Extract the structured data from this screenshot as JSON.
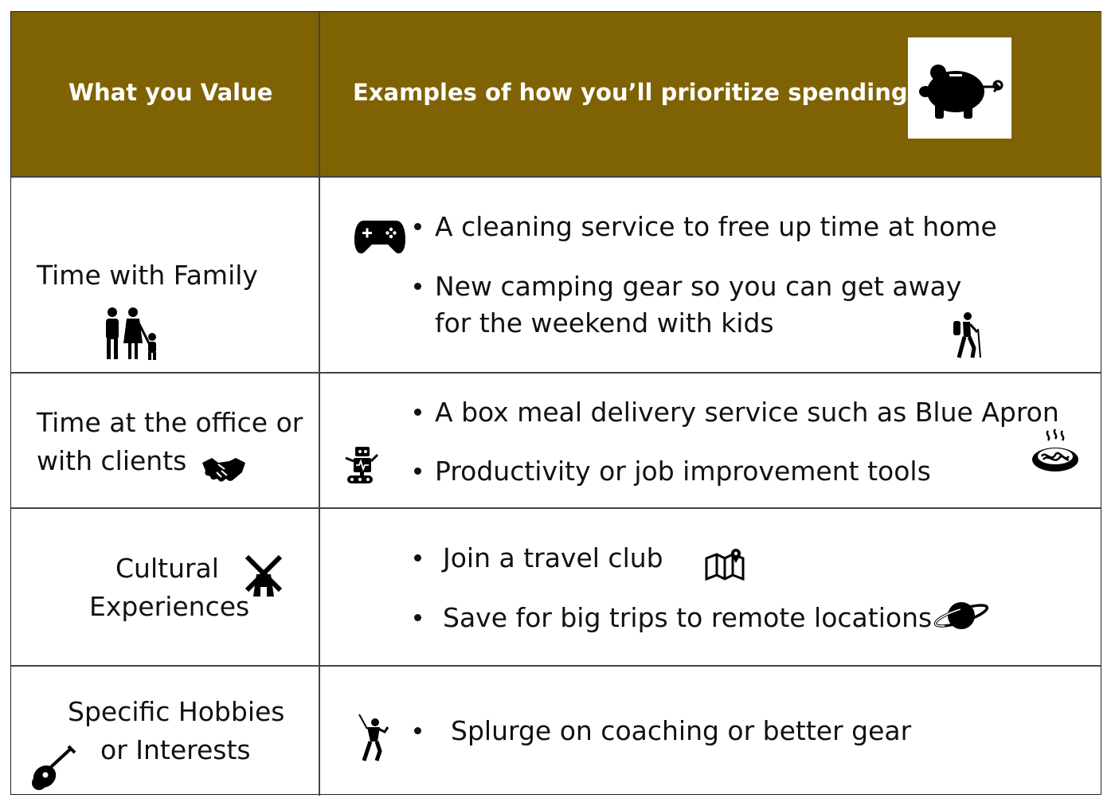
{
  "header": {
    "col1": "What you Value",
    "col2": "Examples of how you’ll prioritize spending",
    "icon": "piggy-bank-icon"
  },
  "rows": [
    {
      "value_lines": [
        "Time with Family"
      ],
      "value_icon": "family-icon",
      "examples": [
        "A cleaning service to free up time at home",
        "New camping gear so you can get away",
        "for the weekend with kids"
      ],
      "example_icons": [
        "game-controller-icon",
        "hiker-icon"
      ]
    },
    {
      "value_lines": [
        "Time at the office or",
        "with clients"
      ],
      "value_icon": "handshake-icon",
      "examples": [
        "A box meal delivery service such as Blue Apron",
        "Productivity or job improvement tools"
      ],
      "example_icons": [
        "robot-icon",
        "noodle-bowl-icon"
      ]
    },
    {
      "value_lines": [
        "Cultural",
        "Experiences"
      ],
      "value_icon": "windmill-icon",
      "examples": [
        "Join a travel club",
        "Save for big trips to remote locations"
      ],
      "example_icons": [
        "map-icon",
        "planet-icon"
      ]
    },
    {
      "value_lines": [
        "Specific Hobbies",
        "or Interests"
      ],
      "value_icon": "guitar-icon",
      "examples": [
        "Splurge on coaching or better gear"
      ],
      "example_icons": [
        "golfer-icon"
      ]
    }
  ],
  "colors": {
    "header_bg": "#7f6203",
    "header_text": "#ffffff",
    "body_text": "#111111"
  }
}
